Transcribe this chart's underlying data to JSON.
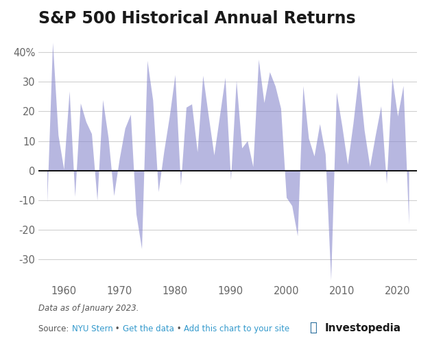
{
  "title": "S&P 500 Historical Annual Returns",
  "years": [
    1957,
    1958,
    1959,
    1960,
    1961,
    1962,
    1963,
    1964,
    1965,
    1966,
    1967,
    1968,
    1969,
    1970,
    1971,
    1972,
    1973,
    1974,
    1975,
    1976,
    1977,
    1978,
    1979,
    1980,
    1981,
    1982,
    1983,
    1984,
    1985,
    1986,
    1987,
    1989,
    1990,
    1991,
    1992,
    1993,
    1994,
    1995,
    1996,
    1997,
    1998,
    1999,
    2000,
    2001,
    2002,
    2003,
    2004,
    2005,
    2006,
    2007,
    2008,
    2009,
    2010,
    2011,
    2012,
    2013,
    2014,
    2015,
    2016,
    2017,
    2018,
    2019,
    2020,
    2021,
    2022
  ],
  "returns": [
    -10.78,
    43.36,
    11.96,
    0.47,
    26.89,
    -8.73,
    22.8,
    16.48,
    12.45,
    -10.06,
    23.98,
    11.06,
    -8.5,
    4.01,
    14.31,
    18.98,
    -14.66,
    -26.47,
    37.2,
    23.84,
    -7.18,
    6.56,
    18.44,
    32.42,
    -4.91,
    21.41,
    22.51,
    6.27,
    32.16,
    18.47,
    5.23,
    31.49,
    -3.1,
    30.47,
    7.62,
    10.08,
    1.32,
    37.58,
    22.96,
    33.36,
    28.58,
    21.04,
    -9.1,
    -11.89,
    -22.1,
    28.68,
    10.88,
    4.91,
    15.79,
    5.55,
    -37.0,
    26.46,
    15.06,
    2.11,
    16.0,
    32.39,
    13.69,
    1.38,
    11.96,
    21.83,
    -4.38,
    31.49,
    18.4,
    28.71,
    -18.11
  ],
  "fill_color": "#8888cc",
  "fill_alpha": 0.6,
  "zero_line_color": "#000000",
  "background_color": "#ffffff",
  "grid_color": "#d0d0d0",
  "tick_color": "#666666",
  "ylim": [
    -38,
    46
  ],
  "ytick_top": 40,
  "yticks": [
    40,
    30,
    20,
    10,
    0,
    -10,
    -20,
    -30
  ],
  "xtick_positions": [
    1960,
    1970,
    1980,
    1990,
    2000,
    2010,
    2020
  ],
  "title_fontsize": 17,
  "tick_fontsize": 10.5,
  "footnote_fontsize": 8.5,
  "footnote1": "Data as of January 2023.",
  "footnote2_parts": [
    [
      "Source: ",
      "#555555"
    ],
    [
      "NYU Stern",
      "#3399cc"
    ],
    [
      " • ",
      "#555555"
    ],
    [
      "Get the data",
      "#3399cc"
    ],
    [
      " • ",
      "#555555"
    ],
    [
      "Add this chart to your site",
      "#3399cc"
    ]
  ],
  "investopedia_text": "ⓨInvestopedia",
  "xlim_left": 1955.5,
  "xlim_right": 2023.5
}
